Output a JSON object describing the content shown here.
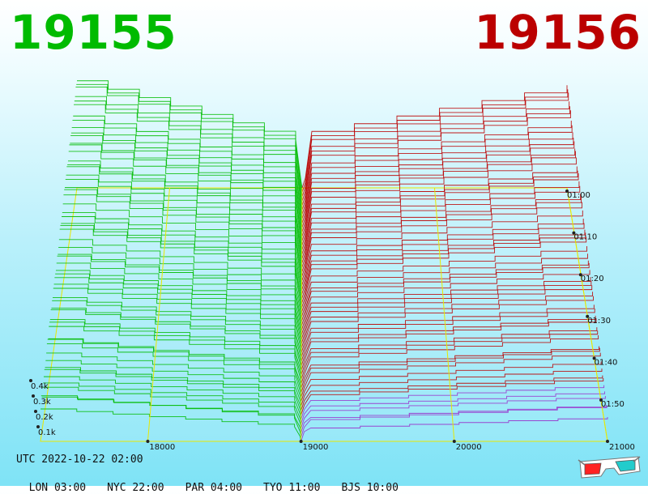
{
  "header": {
    "left_value": "19155",
    "right_value": "19156"
  },
  "footer": {
    "utc": "UTC 2022-10-22 02:00",
    "zones": [
      "LON 03:00",
      "NYC 22:00",
      "PAR 04:00",
      "TYO 11:00",
      "BJS 10:00"
    ]
  },
  "colors": {
    "left": "#00bb00",
    "right": "#bb0000",
    "grid": "#e8e800",
    "purple": "#9933cc"
  },
  "chart_data": {
    "type": "3d-depth-waterfall",
    "x_ticks": [
      "18000",
      "19000",
      "20000",
      "21000"
    ],
    "x_range": [
      17300,
      21000
    ],
    "x_split": 19000,
    "y_ticks": [
      "0.1k",
      "0.2k",
      "0.3k",
      "0.4k"
    ],
    "time_ticks": [
      "01:00",
      "01:10",
      "01:20",
      "01:30",
      "01:40",
      "01:50"
    ],
    "series": [
      {
        "name": "19155",
        "side": "bid"
      },
      {
        "name": "19156",
        "side": "ask"
      }
    ]
  }
}
